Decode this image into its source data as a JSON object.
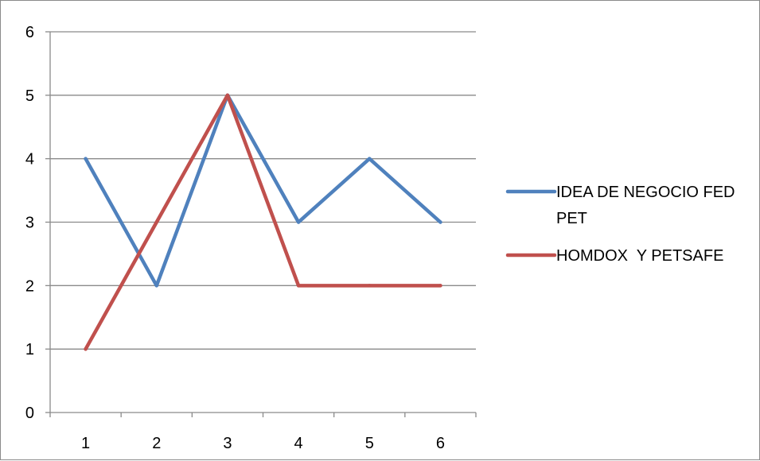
{
  "chart_data": {
    "type": "line",
    "x": [
      1,
      2,
      3,
      4,
      5,
      6
    ],
    "xlabel": "",
    "ylabel": "",
    "ylim": [
      0,
      6
    ],
    "yticks": [
      0,
      1,
      2,
      3,
      4,
      5,
      6
    ],
    "xticks": [
      "1",
      "2",
      "3",
      "4",
      "5",
      "6"
    ],
    "grid": "horizontal",
    "legend_position": "right",
    "series": [
      {
        "name": "IDEA DE NEGOCIO FED PET",
        "legend_lines": [
          "IDEA DE NEGOCIO FED",
          "PET"
        ],
        "color": "#4f81bd",
        "values": [
          4,
          2,
          5,
          3,
          4,
          3
        ]
      },
      {
        "name": "HOMDOX  Y PETSAFE",
        "legend_lines": [
          "HOMDOX  Y PETSAFE"
        ],
        "color": "#c0504d",
        "values": [
          1,
          3,
          5,
          2,
          2,
          2
        ]
      }
    ]
  },
  "colors": {
    "grid": "#8a8a8a",
    "axis": "#8a8a8a",
    "border": "#8a8a8a"
  }
}
